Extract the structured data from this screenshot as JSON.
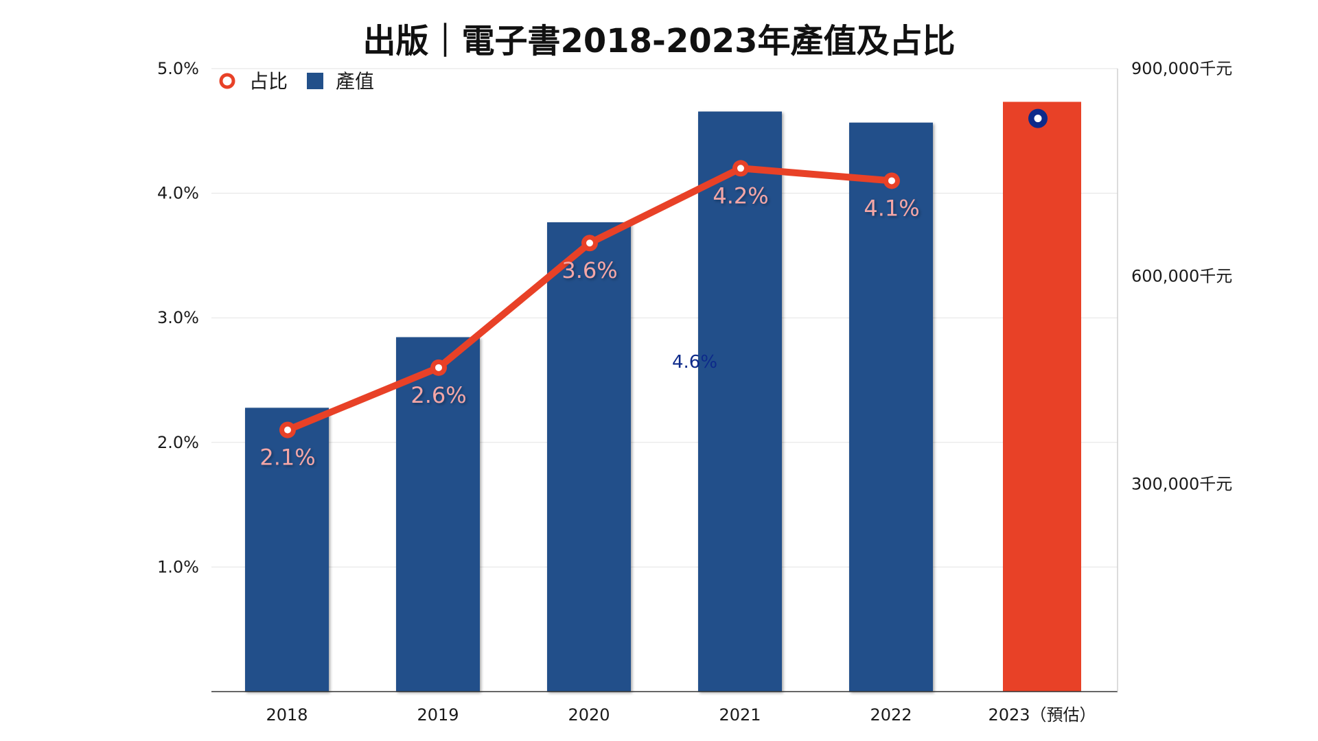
{
  "chart_data": {
    "type": "bar",
    "title": "出版｜電子書2018-2023年產值及占比",
    "categories": [
      "2018",
      "2019",
      "2020",
      "2021",
      "2022",
      "2023（預估）"
    ],
    "series": [
      {
        "name": "產值",
        "type": "bar",
        "axis": "right",
        "values": [
          410000,
          512000,
          678000,
          838000,
          822000,
          852000
        ],
        "colors": [
          "#22508a",
          "#22508a",
          "#22508a",
          "#22508a",
          "#22508a",
          "#e84127"
        ]
      },
      {
        "name": "占比",
        "type": "line",
        "axis": "left",
        "values": [
          2.1,
          2.6,
          3.6,
          4.2,
          4.1,
          4.6
        ],
        "labels": [
          "2.1%",
          "2.6%",
          "3.6%",
          "4.2%",
          "4.1%",
          "4.6%"
        ],
        "color": "#e84127",
        "forecast_color": "#0d2a8a"
      }
    ],
    "left_axis": {
      "ylim": [
        0,
        5
      ],
      "ticks": [
        1,
        2,
        3,
        4,
        5
      ],
      "tick_labels": [
        "1.0%",
        "2.0%",
        "3.0%",
        "4.0%",
        "5.0%"
      ]
    },
    "right_axis": {
      "ylim": [
        0,
        900000
      ],
      "ticks": [
        300000,
        600000,
        900000
      ],
      "tick_labels": [
        "300,000千元",
        "600,000千元",
        "900,000千元"
      ]
    },
    "legend": {
      "position": "top-left",
      "items": [
        {
          "label": "占比",
          "marker": "circle-outline",
          "color": "#e84127"
        },
        {
          "label": "產值",
          "marker": "square",
          "color": "#22508a"
        }
      ]
    },
    "grid": true
  }
}
